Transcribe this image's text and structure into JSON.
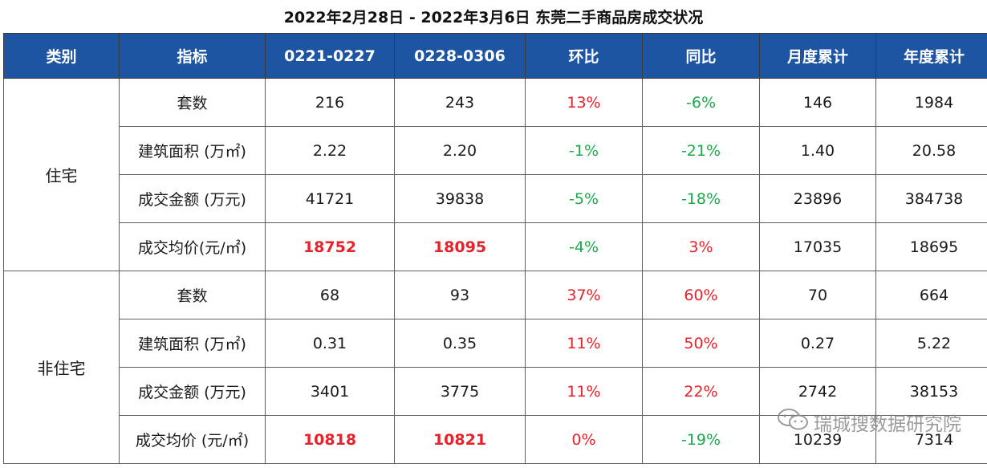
{
  "title": "2022年2月28日 - 2022年3月6日 东莞二手商品房成交状况",
  "headers": [
    "类别",
    "指标",
    "0221-0227",
    "0228-0306",
    "环比",
    "同比",
    "月度累计",
    "年度累计"
  ],
  "groups": [
    {
      "category": "住宅",
      "rows": [
        {
          "metric": "套数",
          "prev": "216",
          "curr": "243",
          "mom": "13%",
          "yoy": "-6%",
          "month": "146",
          "year": "1984"
        },
        {
          "metric": "建筑面积 (万㎡)",
          "prev": "2.22",
          "curr": "2.20",
          "mom": "-1%",
          "yoy": "-21%",
          "month": "1.40",
          "year": "20.58"
        },
        {
          "metric": "成交金额 (万元)",
          "prev": "41721",
          "curr": "39838",
          "mom": "-5%",
          "yoy": "-18%",
          "month": "23896",
          "year": "384738"
        },
        {
          "metric": "成交均价(元/㎡)",
          "prev": "18752",
          "curr": "18095",
          "mom": "-4%",
          "yoy": "3%",
          "month": "17035",
          "year": "18695"
        }
      ]
    },
    {
      "category": "非住宅",
      "rows": [
        {
          "metric": "套数",
          "prev": "68",
          "curr": "93",
          "mom": "37%",
          "yoy": "60%",
          "month": "70",
          "year": "664"
        },
        {
          "metric": "建筑面积 (万㎡)",
          "prev": "0.31",
          "curr": "0.35",
          "mom": "11%",
          "yoy": "50%",
          "month": "0.27",
          "year": "5.22"
        },
        {
          "metric": "成交金额 (万元)",
          "prev": "3401",
          "curr": "3775",
          "mom": "11%",
          "yoy": "22%",
          "month": "2742",
          "year": "38153"
        },
        {
          "metric": "成交均价 (元/㎡)",
          "prev": "10818",
          "curr": "10821",
          "mom": "0%",
          "yoy": "-19%",
          "month": "10239",
          "year": "7314"
        }
      ]
    }
  ],
  "watermark": {
    "text": "瑞城搜数据研究院",
    "icon": "wechat-icon"
  },
  "colors": {
    "header_bg": "#1e55a3",
    "header_text": "#ffffff",
    "positive": "#e8222a",
    "negative": "#1aaa4a",
    "highlight": "#e8222a"
  }
}
